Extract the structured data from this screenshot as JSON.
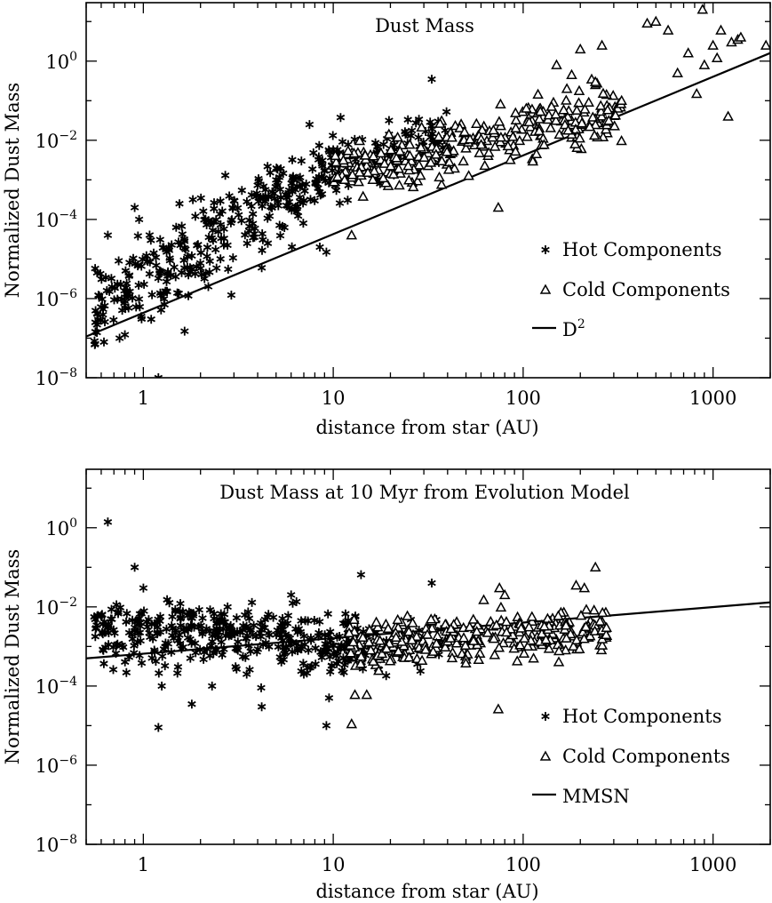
{
  "chart_data": [
    {
      "type": "scatter",
      "title": "Dust Mass",
      "xlabel": "distance from star (AU)",
      "ylabel": "Normalized Dust Mass",
      "xscale": "log",
      "yscale": "log",
      "xlim": [
        0.5,
        2000
      ],
      "ylim": [
        1e-08,
        30.0
      ],
      "x_ticks": [
        {
          "value": 1,
          "label": "1"
        },
        {
          "value": 10,
          "label": "10"
        },
        {
          "value": 100,
          "label": "100"
        },
        {
          "value": 1000,
          "label": "1000"
        }
      ],
      "y_ticks": [
        {
          "value": 1e-08,
          "base": "10",
          "exp": "−8"
        },
        {
          "value": 1e-06,
          "base": "10",
          "exp": "−6"
        },
        {
          "value": 0.0001,
          "base": "10",
          "exp": "−4"
        },
        {
          "value": 0.01,
          "base": "10",
          "exp": "−2"
        },
        {
          "value": 1,
          "base": "10",
          "exp": "0"
        }
      ],
      "legend": {
        "position": "lower-right",
        "entries": [
          {
            "marker": "asterisk",
            "label": "Hot Components"
          },
          {
            "marker": "triangle",
            "label": "Cold Components"
          },
          {
            "marker": "line",
            "label": "D",
            "superscript": "2"
          }
        ]
      },
      "line": {
        "name": "D2",
        "points": [
          [
            0.5,
            1.1e-07
          ],
          [
            2000,
            1.6
          ]
        ]
      },
      "series": [
        {
          "name": "Hot Components",
          "marker": "asterisk",
          "clusters": [
            {
              "x": [
                0.55,
                12
              ],
              "y_at_min": 6e-07,
              "y_at_max": 0.003,
              "scatter_dex": 0.55,
              "n": 340
            },
            {
              "x": [
                10,
                40
              ],
              "y_at_min": 0.002,
              "y_at_max": 0.012,
              "scatter_dex": 0.35,
              "n": 80
            }
          ],
          "points": [
            [
              0.65,
              4e-05
            ],
            [
              0.9,
              0.0002
            ],
            [
              1.2,
              1e-08
            ],
            [
              1.55,
              0.00025
            ],
            [
              1.65,
              1.5e-07
            ],
            [
              2.7,
              0.0013
            ],
            [
              7.5,
              0.025
            ],
            [
              9.2,
              1.5e-05
            ],
            [
              17,
              0.001
            ],
            [
              33,
              0.35
            ],
            [
              0.95,
              0.0001
            ],
            [
              0.62,
              8e-08
            ],
            [
              0.75,
              1e-07
            ],
            [
              3.0,
              0.0003
            ],
            [
              5.0,
              0.001
            ],
            [
              6.8,
              0.003
            ],
            [
              8.5,
              2e-05
            ],
            [
              4.2,
              6e-06
            ],
            [
              2.2,
              2e-06
            ],
            [
              1.1,
              3e-07
            ]
          ]
        },
        {
          "name": "Cold Components",
          "marker": "triangle",
          "clusters": [
            {
              "x": [
                10,
                330
              ],
              "y_at_min": 0.0015,
              "y_at_max": 0.06,
              "scatter_dex": 0.35,
              "n": 290
            }
          ],
          "points": [
            [
              12.5,
              4e-05
            ],
            [
              74,
              0.0002
            ],
            [
              180,
              0.45
            ],
            [
              200,
              2.0
            ],
            [
              260,
              2.5
            ],
            [
              330,
              0.1
            ],
            [
              450,
              9
            ],
            [
              500,
              10
            ],
            [
              580,
              6
            ],
            [
              650,
              0.5
            ],
            [
              740,
              1.6
            ],
            [
              820,
              0.15
            ],
            [
              880,
              20
            ],
            [
              1000,
              2.5
            ],
            [
              1100,
              6
            ],
            [
              1200,
              0.04
            ],
            [
              1250,
              3
            ],
            [
              1350,
              3.5
            ],
            [
              1400,
              4
            ],
            [
              1900,
              2.5
            ],
            [
              900,
              0.8
            ],
            [
              1050,
              1.2
            ],
            [
              150,
              0.8
            ],
            [
              240,
              0.3
            ],
            [
              170,
              0.2
            ]
          ]
        }
      ]
    },
    {
      "type": "scatter",
      "title": "Dust Mass at 10 Myr from Evolution Model",
      "xlabel": "distance from star (AU)",
      "ylabel": "Normalized Dust Mass",
      "xscale": "log",
      "yscale": "log",
      "xlim": [
        0.5,
        2000
      ],
      "ylim": [
        1e-08,
        30.0
      ],
      "x_ticks": [
        {
          "value": 1,
          "label": "1"
        },
        {
          "value": 10,
          "label": "10"
        },
        {
          "value": 100,
          "label": "100"
        },
        {
          "value": 1000,
          "label": "1000"
        }
      ],
      "y_ticks": [
        {
          "value": 1e-08,
          "base": "10",
          "exp": "−8"
        },
        {
          "value": 1e-06,
          "base": "10",
          "exp": "−6"
        },
        {
          "value": 0.0001,
          "base": "10",
          "exp": "−4"
        },
        {
          "value": 0.01,
          "base": "10",
          "exp": "−2"
        },
        {
          "value": 1,
          "base": "10",
          "exp": "0"
        }
      ],
      "legend": {
        "position": "lower-right",
        "entries": [
          {
            "marker": "asterisk",
            "label": "Hot Components"
          },
          {
            "marker": "triangle",
            "label": "Cold Components"
          },
          {
            "marker": "line",
            "label": "MMSN",
            "superscript": ""
          }
        ]
      },
      "line": {
        "name": "MMSN",
        "points": [
          [
            0.5,
            0.0005
          ],
          [
            2000,
            0.013
          ]
        ]
      },
      "series": [
        {
          "name": "Hot Components",
          "marker": "asterisk",
          "clusters": [
            {
              "x": [
                0.55,
                15
              ],
              "y_at_min": 0.003,
              "y_at_max": 0.0012,
              "scatter_dex": 0.4,
              "n": 380
            },
            {
              "x": [
                10,
                40
              ],
              "y_at_min": 0.001,
              "y_at_max": 0.0012,
              "scatter_dex": 0.3,
              "n": 60
            }
          ],
          "points": [
            [
              0.65,
              1.4
            ],
            [
              0.9,
              0.1
            ],
            [
              1.2,
              9e-06
            ],
            [
              1.25,
              0.0001
            ],
            [
              1.8,
              3.5e-05
            ],
            [
              4.2,
              3e-05
            ],
            [
              9.2,
              1e-05
            ],
            [
              9.5,
              5e-05
            ],
            [
              14,
              0.065
            ],
            [
              33,
              0.04
            ],
            [
              2.3,
              0.0001
            ],
            [
              3.5,
              0.0002
            ],
            [
              7,
              0.0002
            ],
            [
              6,
              0.02
            ],
            [
              1.0,
              0.03
            ]
          ]
        },
        {
          "name": "Cold Components",
          "marker": "triangle",
          "clusters": [
            {
              "x": [
                12,
                280
              ],
              "y_at_min": 0.001,
              "y_at_max": 0.003,
              "scatter_dex": 0.3,
              "n": 300
            }
          ],
          "points": [
            [
              12.5,
              1.1e-05
            ],
            [
              13,
              6e-05
            ],
            [
              15,
              6e-05
            ],
            [
              74,
              2.6e-05
            ],
            [
              190,
              0.035
            ],
            [
              210,
              0.03
            ],
            [
              240,
              0.1
            ],
            [
              62,
              0.015
            ],
            [
              75,
              0.03
            ],
            [
              80,
              0.02
            ]
          ]
        }
      ]
    }
  ]
}
